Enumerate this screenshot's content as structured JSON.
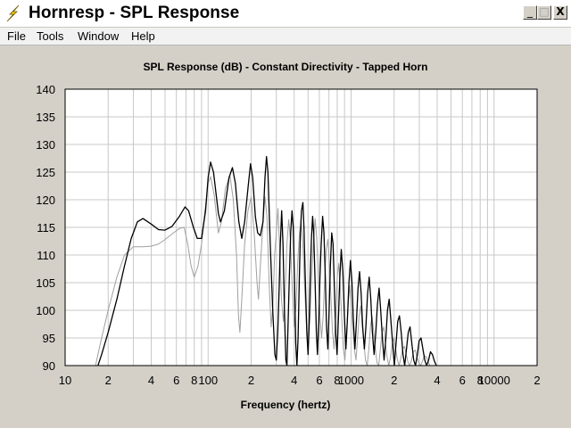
{
  "window": {
    "title": "Hornresp - SPL Response",
    "app_icon": "lightning-bolt-icon",
    "controls": {
      "minimize": "_",
      "maximize": "□",
      "close": "X"
    }
  },
  "menu": {
    "items": [
      "File",
      "Tools",
      "Window",
      "Help"
    ]
  },
  "colors": {
    "trace_primary": "#000000",
    "trace_secondary": "#a0a0a0",
    "grid": "#c8c8c8",
    "plot_bg": "#ffffff",
    "window_bg": "#d4d0c8"
  },
  "chart_data": {
    "type": "line",
    "title": "SPL Response (dB) - Constant Directivity - Tapped Horn",
    "xlabel": "Frequency (hertz)",
    "ylabel": "",
    "x_scale": "log",
    "xlim": [
      10,
      20000
    ],
    "ylim": [
      90,
      140
    ],
    "x_ticks": [
      {
        "value": 10,
        "label": "10"
      },
      {
        "value": 20,
        "label": "2"
      },
      {
        "value": 40,
        "label": "4"
      },
      {
        "value": 60,
        "label": "6"
      },
      {
        "value": 80,
        "label": "8"
      },
      {
        "value": 100,
        "label": "100"
      },
      {
        "value": 200,
        "label": "2"
      },
      {
        "value": 400,
        "label": "4"
      },
      {
        "value": 600,
        "label": "6"
      },
      {
        "value": 800,
        "label": "8"
      },
      {
        "value": 1000,
        "label": "1000"
      },
      {
        "value": 2000,
        "label": "2"
      },
      {
        "value": 4000,
        "label": "4"
      },
      {
        "value": 6000,
        "label": "6"
      },
      {
        "value": 8000,
        "label": "8"
      },
      {
        "value": 10000,
        "label": "10000"
      },
      {
        "value": 20000,
        "label": "2"
      }
    ],
    "y_ticks": [
      90,
      95,
      100,
      105,
      110,
      115,
      120,
      125,
      130,
      135,
      140
    ],
    "grid": true,
    "series": [
      {
        "color": "#000000",
        "points": [
          [
            16,
            88
          ],
          [
            18,
            92
          ],
          [
            20,
            96
          ],
          [
            23,
            102
          ],
          [
            26,
            108
          ],
          [
            29,
            113
          ],
          [
            32,
            116
          ],
          [
            35,
            116.6
          ],
          [
            40,
            115.6
          ],
          [
            45,
            114.6
          ],
          [
            50,
            114.5
          ],
          [
            56,
            115.2
          ],
          [
            63,
            117
          ],
          [
            69,
            118.7
          ],
          [
            73,
            118
          ],
          [
            79,
            115
          ],
          [
            84,
            113
          ],
          [
            90,
            113
          ],
          [
            96,
            118
          ],
          [
            100,
            124
          ],
          [
            104,
            126.8
          ],
          [
            109,
            125
          ],
          [
            118,
            117.5
          ],
          [
            122,
            116
          ],
          [
            130,
            118
          ],
          [
            140,
            124
          ],
          [
            148,
            125.8
          ],
          [
            155,
            123
          ],
          [
            164,
            116
          ],
          [
            172,
            113
          ],
          [
            180,
            116
          ],
          [
            190,
            122
          ],
          [
            198,
            126.5
          ],
          [
            205,
            124
          ],
          [
            214,
            117
          ],
          [
            222,
            114
          ],
          [
            232,
            113.5
          ],
          [
            242,
            116
          ],
          [
            250,
            124
          ],
          [
            256,
            127.8
          ],
          [
            262,
            125
          ],
          [
            272,
            112
          ],
          [
            283,
            100
          ],
          [
            293,
            92
          ],
          [
            300,
            91
          ],
          [
            307,
            96
          ],
          [
            314,
            104
          ],
          [
            320,
            112
          ],
          [
            327,
            118
          ],
          [
            334,
            112
          ],
          [
            342,
            100
          ],
          [
            350,
            91
          ],
          [
            356,
            90
          ],
          [
            362,
            97
          ],
          [
            370,
            106
          ],
          [
            378,
            114
          ],
          [
            386,
            118
          ],
          [
            394,
            115
          ],
          [
            402,
            105
          ],
          [
            410,
            94
          ],
          [
            418,
            90
          ],
          [
            426,
            95
          ],
          [
            434,
            105
          ],
          [
            442,
            114
          ],
          [
            450,
            118
          ],
          [
            460,
            119.5
          ],
          [
            468,
            115
          ],
          [
            478,
            106
          ],
          [
            490,
            96
          ],
          [
            500,
            92
          ],
          [
            508,
            97
          ],
          [
            518,
            106
          ],
          [
            528,
            113
          ],
          [
            538,
            117
          ],
          [
            548,
            114
          ],
          [
            560,
            105
          ],
          [
            572,
            96
          ],
          [
            582,
            92
          ],
          [
            594,
            98
          ],
          [
            606,
            106
          ],
          [
            618,
            112
          ],
          [
            632,
            117
          ],
          [
            646,
            114
          ],
          [
            660,
            106
          ],
          [
            674,
            97
          ],
          [
            688,
            93
          ],
          [
            702,
            100
          ],
          [
            716,
            108
          ],
          [
            732,
            114
          ],
          [
            748,
            112
          ],
          [
            764,
            104
          ],
          [
            780,
            96
          ],
          [
            798,
            92
          ],
          [
            816,
            99
          ],
          [
            834,
            106
          ],
          [
            854,
            111
          ],
          [
            876,
            107
          ],
          [
            898,
            99
          ],
          [
            920,
            93
          ],
          [
            942,
            98
          ],
          [
            966,
            105
          ],
          [
            990,
            109
          ],
          [
            1014,
            105
          ],
          [
            1038,
            98
          ],
          [
            1064,
            93
          ],
          [
            1090,
            98
          ],
          [
            1118,
            104
          ],
          [
            1146,
            107
          ],
          [
            1176,
            103
          ],
          [
            1206,
            97
          ],
          [
            1238,
            93
          ],
          [
            1270,
            97
          ],
          [
            1304,
            103
          ],
          [
            1338,
            106
          ],
          [
            1374,
            102
          ],
          [
            1410,
            96
          ],
          [
            1448,
            92
          ],
          [
            1488,
            96
          ],
          [
            1528,
            101
          ],
          [
            1570,
            104
          ],
          [
            1612,
            100
          ],
          [
            1656,
            95
          ],
          [
            1702,
            91
          ],
          [
            1750,
            95
          ],
          [
            1798,
            100
          ],
          [
            1848,
            102
          ],
          [
            1900,
            98
          ],
          [
            1952,
            94
          ],
          [
            2006,
            90
          ],
          [
            2062,
            94
          ],
          [
            2120,
            98
          ],
          [
            2180,
            99
          ],
          [
            2242,
            96
          ],
          [
            2306,
            92
          ],
          [
            2372,
            90
          ],
          [
            2440,
            93
          ],
          [
            2512,
            96
          ],
          [
            2586,
            97
          ],
          [
            2662,
            94
          ],
          [
            2740,
            91
          ],
          [
            2822,
            90
          ],
          [
            2906,
            92
          ],
          [
            2994,
            94.5
          ],
          [
            3084,
            95
          ],
          [
            3178,
            93
          ],
          [
            3276,
            91
          ],
          [
            3378,
            90
          ],
          [
            3484,
            91
          ],
          [
            3594,
            92.5
          ],
          [
            3708,
            92
          ],
          [
            3828,
            90.8
          ],
          [
            3952,
            90
          ]
        ]
      },
      {
        "color": "#a0a0a0",
        "points": [
          [
            16,
            89
          ],
          [
            18,
            95
          ],
          [
            20,
            100
          ],
          [
            23,
            106
          ],
          [
            26,
            110
          ],
          [
            30,
            111.5
          ],
          [
            35,
            111.5
          ],
          [
            40,
            111.6
          ],
          [
            45,
            112
          ],
          [
            50,
            112.8
          ],
          [
            56,
            113.8
          ],
          [
            63,
            114.8
          ],
          [
            68,
            115
          ],
          [
            72,
            112
          ],
          [
            76,
            108
          ],
          [
            80,
            106
          ],
          [
            85,
            108
          ],
          [
            90,
            112
          ],
          [
            95,
            118
          ],
          [
            100,
            123
          ],
          [
            104,
            124.2
          ],
          [
            110,
            121
          ],
          [
            118,
            114
          ],
          [
            124,
            116
          ],
          [
            132,
            122
          ],
          [
            142,
            124.4
          ],
          [
            150,
            120
          ],
          [
            158,
            110
          ],
          [
            163,
            99
          ],
          [
            167,
            96
          ],
          [
            172,
            102
          ],
          [
            180,
            112
          ],
          [
            190,
            118
          ],
          [
            200,
            120.5
          ],
          [
            210,
            114
          ],
          [
            220,
            105
          ],
          [
            225,
            102
          ],
          [
            232,
            108
          ],
          [
            242,
            116
          ],
          [
            250,
            120.5
          ],
          [
            258,
            117
          ],
          [
            268,
            104
          ],
          [
            276,
            97
          ],
          [
            284,
            101
          ],
          [
            292,
            110
          ],
          [
            300,
            114
          ],
          [
            308,
            118.4
          ],
          [
            316,
            112
          ],
          [
            326,
            102
          ],
          [
            336,
            98
          ],
          [
            346,
            103
          ],
          [
            356,
            112
          ],
          [
            366,
            116.4
          ],
          [
            376,
            113
          ],
          [
            388,
            104
          ],
          [
            400,
            97
          ],
          [
            412,
            101
          ],
          [
            424,
            109
          ],
          [
            436,
            114
          ],
          [
            448,
            116
          ],
          [
            460,
            112
          ],
          [
            474,
            104
          ],
          [
            488,
            97
          ],
          [
            502,
            94
          ],
          [
            516,
            99
          ],
          [
            530,
            106
          ],
          [
            545,
            112
          ],
          [
            560,
            116.6
          ],
          [
            575,
            113
          ],
          [
            590,
            106
          ],
          [
            606,
            99
          ],
          [
            622,
            95
          ],
          [
            638,
            99
          ],
          [
            654,
            106
          ],
          [
            670,
            111
          ],
          [
            688,
            112.8
          ],
          [
            706,
            108
          ],
          [
            724,
            102
          ],
          [
            742,
            96
          ],
          [
            760,
            93
          ],
          [
            780,
            99
          ],
          [
            800,
            106
          ],
          [
            820,
            108.5
          ],
          [
            840,
            104
          ],
          [
            862,
            98
          ],
          [
            884,
            93
          ],
          [
            906,
            91
          ],
          [
            930,
            96
          ],
          [
            954,
            101
          ],
          [
            978,
            104.5
          ],
          [
            1002,
            101
          ],
          [
            1028,
            97
          ],
          [
            1054,
            93
          ],
          [
            1082,
            91
          ],
          [
            1110,
            95
          ],
          [
            1138,
            99
          ],
          [
            1168,
            100.8
          ],
          [
            1198,
            97
          ],
          [
            1230,
            94
          ],
          [
            1262,
            91
          ],
          [
            1296,
            90
          ],
          [
            1330,
            93
          ],
          [
            1366,
            97
          ],
          [
            1402,
            99
          ],
          [
            1440,
            96
          ],
          [
            1478,
            93
          ],
          [
            1518,
            90.5
          ],
          [
            1560,
            90
          ],
          [
            1602,
            93
          ],
          [
            1646,
            96
          ],
          [
            1692,
            97
          ],
          [
            1738,
            94
          ],
          [
            1786,
            91.5
          ],
          [
            1836,
            90
          ],
          [
            1888,
            91.5
          ],
          [
            1942,
            94
          ],
          [
            1996,
            95
          ],
          [
            2052,
            93
          ],
          [
            2110,
            91
          ],
          [
            2170,
            90
          ],
          [
            2232,
            91.5
          ],
          [
            2296,
            93
          ],
          [
            2362,
            93.5
          ],
          [
            2430,
            92
          ],
          [
            2500,
            90.6
          ],
          [
            2574,
            90
          ],
          [
            2650,
            91
          ],
          [
            2728,
            92.5
          ],
          [
            2808,
            92.8
          ],
          [
            2892,
            91.5
          ],
          [
            2978,
            90.5
          ],
          [
            3066,
            90
          ],
          [
            3158,
            90.8
          ],
          [
            3254,
            91.8
          ],
          [
            3352,
            91.6
          ],
          [
            3454,
            90.8
          ],
          [
            3560,
            90
          ]
        ]
      }
    ]
  }
}
